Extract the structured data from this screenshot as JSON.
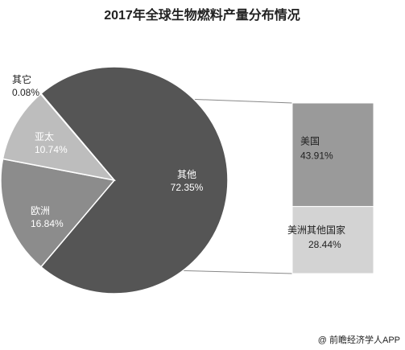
{
  "chart_data": {
    "type": "pie",
    "title": "2017年全球生物燃料产量分布情况",
    "slices": [
      {
        "label": "其他",
        "value": 72.35,
        "display": "72.35%",
        "color": "#555555",
        "text_color": "#ffffff"
      },
      {
        "label": "欧洲",
        "value": 16.84,
        "display": "16.84%",
        "color": "#8c8c8c",
        "text_color": "#ffffff"
      },
      {
        "label": "亚太",
        "value": 10.74,
        "display": "10.74%",
        "color": "#bdbdbd",
        "text_color": "#ffffff"
      },
      {
        "label": "其它",
        "value": 0.08,
        "display": "0.08%",
        "color": "#e8e8e8",
        "text_color": "#222222"
      }
    ],
    "breakdown_of": "其他",
    "breakdown": [
      {
        "label": "美国",
        "value": 43.91,
        "display": "43.91%",
        "color": "#9a9a9a",
        "text_color": "#222222"
      },
      {
        "label": "美洲其他国家",
        "value": 28.44,
        "display": "28.44%",
        "color": "#d3d3d3",
        "text_color": "#222222"
      }
    ]
  },
  "source": "@ 前瞻经济学人APP"
}
